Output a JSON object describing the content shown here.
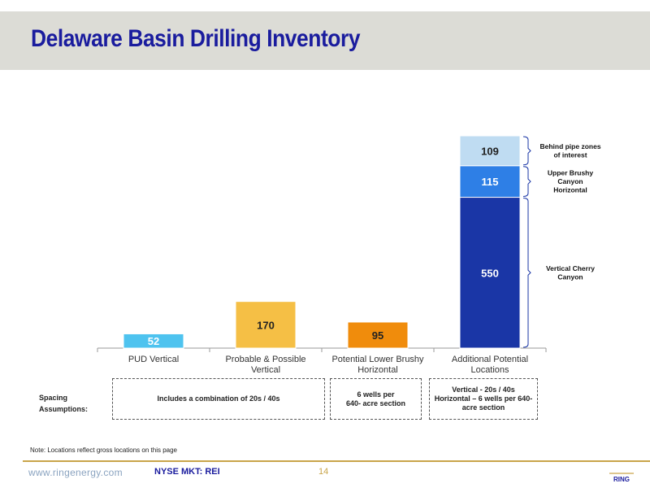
{
  "slide": {
    "title": "Delaware Basin Drilling Inventory",
    "note": "Note: Locations reflect gross locations on this page"
  },
  "spacing": {
    "label_line1": "Spacing",
    "label_line2": "Assumptions:",
    "boxes": [
      {
        "lines": [
          "Includes a combination of 20s / 40s"
        ]
      },
      {
        "lines": [
          "6 wells per",
          "640- acre section"
        ]
      },
      {
        "lines": [
          "Vertical - 20s / 40s",
          "Horizontal – 6 wells per 640-",
          "acre section"
        ]
      }
    ]
  },
  "footer": {
    "url": "www.ringenergy.com",
    "ticker": "NYSE MKT: REI",
    "page_number": "14",
    "logo_text": "RING"
  },
  "colors": {
    "header_band": "#dcdcd6",
    "title": "#1a1c9e",
    "footer_line": "#c9a54a"
  },
  "chart_data": {
    "type": "bar",
    "stacked": true,
    "categories": [
      "PUD Vertical",
      "Probable & Possible Vertical",
      "Potential Lower Brushy Horizontal",
      "Additional Potential Locations"
    ],
    "category_lines": [
      [
        "PUD Vertical"
      ],
      [
        "Probable & Possible",
        "Vertical"
      ],
      [
        "Potential Lower Brushy",
        "Horizontal"
      ],
      [
        "Additional Potential",
        "Locations"
      ]
    ],
    "series": [
      {
        "color": "#4ec3ef",
        "values": [
          52,
          0,
          0,
          0
        ]
      },
      {
        "color": "#f5bf45",
        "values": [
          0,
          170,
          0,
          0
        ]
      },
      {
        "color": "#f08c0c",
        "values": [
          0,
          0,
          95,
          0
        ]
      },
      {
        "color": "#1a36a6",
        "values": [
          0,
          0,
          0,
          550
        ]
      },
      {
        "color": "#2e7fe6",
        "values": [
          0,
          0,
          0,
          115
        ]
      },
      {
        "color": "#bfdcf2",
        "values": [
          0,
          0,
          0,
          109
        ]
      }
    ],
    "annotations": [
      {
        "target_series": 5,
        "lines": [
          "Behind pipe zones",
          "of interest"
        ]
      },
      {
        "target_series": 4,
        "lines": [
          "Upper Brushy",
          "Canyon",
          "Horizontal"
        ]
      },
      {
        "target_series": 3,
        "lines": [
          "Vertical Cherry",
          "Canyon"
        ]
      }
    ],
    "ylim": [
      0,
      774
    ],
    "grid": false,
    "legend": "none"
  }
}
